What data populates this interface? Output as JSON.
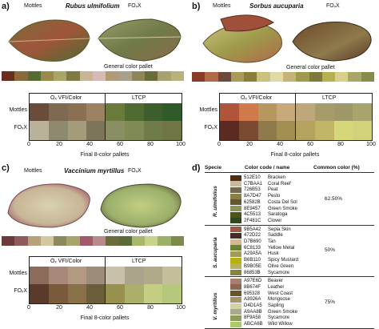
{
  "panels": [
    {
      "id": "a",
      "label": "a)",
      "species": "Rubus ulmifolium",
      "mottles_label": "Mottles",
      "fox_label": "FOₓX",
      "palette_label": "General color pallet",
      "left_header": "Oₓ VFI/Color",
      "right_header": "LTCP",
      "row_labels": [
        "Mottles",
        "FOₓX"
      ],
      "ticks": [
        "0",
        "20",
        "40",
        "60",
        "80",
        "100"
      ],
      "xlabel": "Final 8-color pallets",
      "palette": [
        "#6b2e1e",
        "#8a6a3b",
        "#556b2f",
        "#9a8a4a",
        "#a9a56a",
        "#7e7a44",
        "#c7b596",
        "#d9b9b8",
        "#b29a78",
        "#a7a08a",
        "#8e8656",
        "#6a6b3a",
        "#a7a070",
        "#b7b17b"
      ],
      "mottles_row": [
        "#6b4c3b",
        "#7e6a52",
        "#8b6f53",
        "#9b8361",
        "#6a7a3b",
        "#4f6b32",
        "#3e5d2c",
        "#2f5a2a"
      ],
      "fox_row": [
        "#b9b29a",
        "#8e8a70",
        "#a49b7a",
        "#7d7559",
        "#8a8f63",
        "#7f8a55",
        "#6f7b48",
        "#6f7545"
      ]
    },
    {
      "id": "b",
      "label": "b)",
      "species": "Sorbus aucuparia",
      "mottles_label": "Mottles",
      "fox_label": "FOₓX",
      "palette_label": "General color pallet",
      "left_header": "Oₓ VFI/Color",
      "right_header": "LTCP",
      "row_labels": [
        "Mottles",
        "FOₓX"
      ],
      "ticks": [
        "0",
        "20",
        "40",
        "60",
        "80",
        "100"
      ],
      "xlabel": "Final 8-color pallets",
      "palette": [
        "#8a3b2b",
        "#b06a4a",
        "#6b4a3a",
        "#a89b5a",
        "#8b7d3b",
        "#c9c27a",
        "#e2d9a8",
        "#c9b27a",
        "#9e9a4b",
        "#7e7a3a",
        "#b7b04e",
        "#d7d08a",
        "#a8a56a",
        "#8a8a4b"
      ],
      "mottles_row": [
        "#b0553a",
        "#d07a4b",
        "#b89660",
        "#c7a97a",
        "#bfa77c",
        "#a89b6a",
        "#9e9868",
        "#a9a36e"
      ],
      "fox_row": [
        "#5b2b22",
        "#7a4a32",
        "#8e7a4b",
        "#a48f52",
        "#b4a35e",
        "#c2b567",
        "#d6d67a",
        "#d2d27a"
      ]
    },
    {
      "id": "c",
      "label": "c)",
      "species": "Vaccinium myrtillus",
      "mottles_label": "Mottles",
      "fox_label": "FOₓX",
      "palette_label": "General color pallet",
      "left_header": "Oₓ VFI/Color",
      "right_header": "LTCP",
      "row_labels": [
        "Mottles",
        "FOₓX"
      ],
      "ticks": [
        "0",
        "20",
        "40",
        "60",
        "80",
        "100"
      ],
      "xlabel": "Final 8-color pallets",
      "palette": [
        "#6b3b3b",
        "#8e5a5a",
        "#b7a07a",
        "#d4c6a0",
        "#8a8a5a",
        "#a7a56a",
        "#a05a6a",
        "#b88a8a",
        "#6b6b3b",
        "#5a6b3a",
        "#a9b76b",
        "#c7d28a",
        "#9ab06b",
        "#7e8a4b"
      ],
      "mottles_row": [
        "#8b6b5a",
        "#a8887a",
        "#b49a82",
        "#9c8c78",
        "#c8c0a8",
        "#aaa48a",
        "#b0aa88",
        "#c4bf9a"
      ],
      "fox_row": [
        "#5a3b2b",
        "#7a5a3a",
        "#8a7048",
        "#6b5e3a",
        "#98904e",
        "#aab06a",
        "#c3ce82",
        "#b5c77a"
      ]
    }
  ],
  "table": {
    "label": "d)",
    "headers": {
      "specie": "Specie",
      "code": "Color code / name",
      "common": "Common color (%)"
    },
    "groups": [
      {
        "name": "R. ulmifolius",
        "percent": "62.50%",
        "rows": [
          {
            "code": "512E10",
            "name": "Bracken",
            "hex": "#512E10"
          },
          {
            "code": "C7BAA1",
            "name": "Coral Reef",
            "hex": "#C7BAA1"
          },
          {
            "code": "726B53",
            "name": "Peat",
            "hex": "#726B53"
          },
          {
            "code": "8A7D47",
            "name": "Pesto",
            "hex": "#8A7D47"
          },
          {
            "code": "62582B",
            "name": "Costa Del Sol",
            "hex": "#62582B"
          },
          {
            "code": "8E9457",
            "name": "Green Smoke",
            "hex": "#8E9457"
          },
          {
            "code": "4C5513",
            "name": "Saratoga",
            "hex": "#4C5513"
          },
          {
            "code": "2F481C",
            "name": "Clover",
            "hex": "#2F481C"
          }
        ]
      },
      {
        "name": "S. aucuparia",
        "percent": "50%",
        "rows": [
          {
            "code": "9B5A42",
            "name": "Sepia Skin",
            "hex": "#9B5A42"
          },
          {
            "code": "472D22",
            "name": "Saddle",
            "hex": "#472D22"
          },
          {
            "code": "D7B690",
            "name": "Tan",
            "hex": "#D7B690"
          },
          {
            "code": "6C8133",
            "name": "Yellow Metal",
            "hex": "#6C8133"
          },
          {
            "code": "A29A5A",
            "name": "Husk",
            "hex": "#A29A5A"
          },
          {
            "code": "B6B110",
            "name": "Spicy Mustard",
            "hex": "#B6B110"
          },
          {
            "code": "B9B05E",
            "name": "Olive Green",
            "hex": "#B9B05E"
          },
          {
            "code": "86853B",
            "name": "Sycamore",
            "hex": "#86853B"
          }
        ]
      },
      {
        "name": "V. myrtillus",
        "percent": "75%",
        "rows": [
          {
            "code": "A97E6D",
            "name": "Beaver",
            "hex": "#A97E6D"
          },
          {
            "code": "8B674F",
            "name": "Leather",
            "hex": "#8B674F"
          },
          {
            "code": "695328",
            "name": "West Coast",
            "hex": "#695328"
          },
          {
            "code": "A3926A",
            "name": "Mongoose",
            "hex": "#A3926A"
          },
          {
            "code": "D4D1A5",
            "name": "Sapling",
            "hex": "#D4D1A5"
          },
          {
            "code": "A9AA8B",
            "name": "Green Smoke",
            "hex": "#A9AA8B"
          },
          {
            "code": "8F9A58",
            "name": "Sycamore",
            "hex": "#8F9A58"
          },
          {
            "code": "ABCA6B",
            "name": "Wild Willow",
            "hex": "#ABCA6B"
          }
        ]
      }
    ]
  }
}
